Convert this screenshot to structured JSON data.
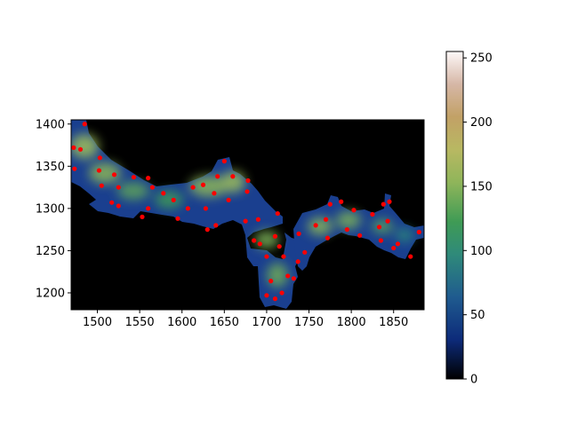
{
  "chart_data": {
    "type": "heatmap",
    "title": "",
    "xlabel": "",
    "ylabel": "",
    "xlim": [
      1469,
      1886
    ],
    "ylim": [
      1180,
      1405
    ],
    "x_ticks": [
      1500,
      1550,
      1600,
      1650,
      1700,
      1750,
      1800,
      1850
    ],
    "y_ticks": [
      1200,
      1250,
      1300,
      1350,
      1400
    ],
    "colormap": "gist_earth",
    "background_color": "#000000",
    "point_color": "#ff0000",
    "colorbar": {
      "range": [
        0,
        255
      ],
      "ticks": [
        0,
        50,
        100,
        150,
        200,
        250
      ]
    },
    "points": [
      {
        "x": 1472,
        "y": 1372
      },
      {
        "x": 1480,
        "y": 1370
      },
      {
        "x": 1485,
        "y": 1400
      },
      {
        "x": 1473,
        "y": 1347
      },
      {
        "x": 1503,
        "y": 1360
      },
      {
        "x": 1502,
        "y": 1345
      },
      {
        "x": 1505,
        "y": 1327
      },
      {
        "x": 1520,
        "y": 1340
      },
      {
        "x": 1525,
        "y": 1325
      },
      {
        "x": 1517,
        "y": 1307
      },
      {
        "x": 1525,
        "y": 1303
      },
      {
        "x": 1543,
        "y": 1337
      },
      {
        "x": 1560,
        "y": 1336
      },
      {
        "x": 1565,
        "y": 1325
      },
      {
        "x": 1560,
        "y": 1300
      },
      {
        "x": 1553,
        "y": 1290
      },
      {
        "x": 1578,
        "y": 1318
      },
      {
        "x": 1590,
        "y": 1310
      },
      {
        "x": 1595,
        "y": 1288
      },
      {
        "x": 1607,
        "y": 1300
      },
      {
        "x": 1613,
        "y": 1325
      },
      {
        "x": 1625,
        "y": 1328
      },
      {
        "x": 1628,
        "y": 1300
      },
      {
        "x": 1630,
        "y": 1275
      },
      {
        "x": 1638,
        "y": 1318
      },
      {
        "x": 1642,
        "y": 1338
      },
      {
        "x": 1650,
        "y": 1356
      },
      {
        "x": 1660,
        "y": 1338
      },
      {
        "x": 1655,
        "y": 1310
      },
      {
        "x": 1640,
        "y": 1280
      },
      {
        "x": 1677,
        "y": 1320
      },
      {
        "x": 1678,
        "y": 1333
      },
      {
        "x": 1675,
        "y": 1285
      },
      {
        "x": 1690,
        "y": 1287
      },
      {
        "x": 1685,
        "y": 1262
      },
      {
        "x": 1692,
        "y": 1258
      },
      {
        "x": 1700,
        "y": 1243
      },
      {
        "x": 1710,
        "y": 1267
      },
      {
        "x": 1713,
        "y": 1294
      },
      {
        "x": 1715,
        "y": 1255
      },
      {
        "x": 1720,
        "y": 1243
      },
      {
        "x": 1705,
        "y": 1214
      },
      {
        "x": 1700,
        "y": 1197
      },
      {
        "x": 1710,
        "y": 1193
      },
      {
        "x": 1718,
        "y": 1200
      },
      {
        "x": 1725,
        "y": 1220
      },
      {
        "x": 1732,
        "y": 1217
      },
      {
        "x": 1737,
        "y": 1237
      },
      {
        "x": 1745,
        "y": 1248
      },
      {
        "x": 1738,
        "y": 1270
      },
      {
        "x": 1758,
        "y": 1280
      },
      {
        "x": 1770,
        "y": 1287
      },
      {
        "x": 1772,
        "y": 1265
      },
      {
        "x": 1775,
        "y": 1305
      },
      {
        "x": 1788,
        "y": 1308
      },
      {
        "x": 1795,
        "y": 1275
      },
      {
        "x": 1803,
        "y": 1298
      },
      {
        "x": 1810,
        "y": 1268
      },
      {
        "x": 1825,
        "y": 1293
      },
      {
        "x": 1833,
        "y": 1278
      },
      {
        "x": 1835,
        "y": 1262
      },
      {
        "x": 1843,
        "y": 1285
      },
      {
        "x": 1845,
        "y": 1308
      },
      {
        "x": 1838,
        "y": 1305
      },
      {
        "x": 1850,
        "y": 1253
      },
      {
        "x": 1855,
        "y": 1258
      },
      {
        "x": 1870,
        "y": 1243
      },
      {
        "x": 1880,
        "y": 1272
      }
    ]
  }
}
